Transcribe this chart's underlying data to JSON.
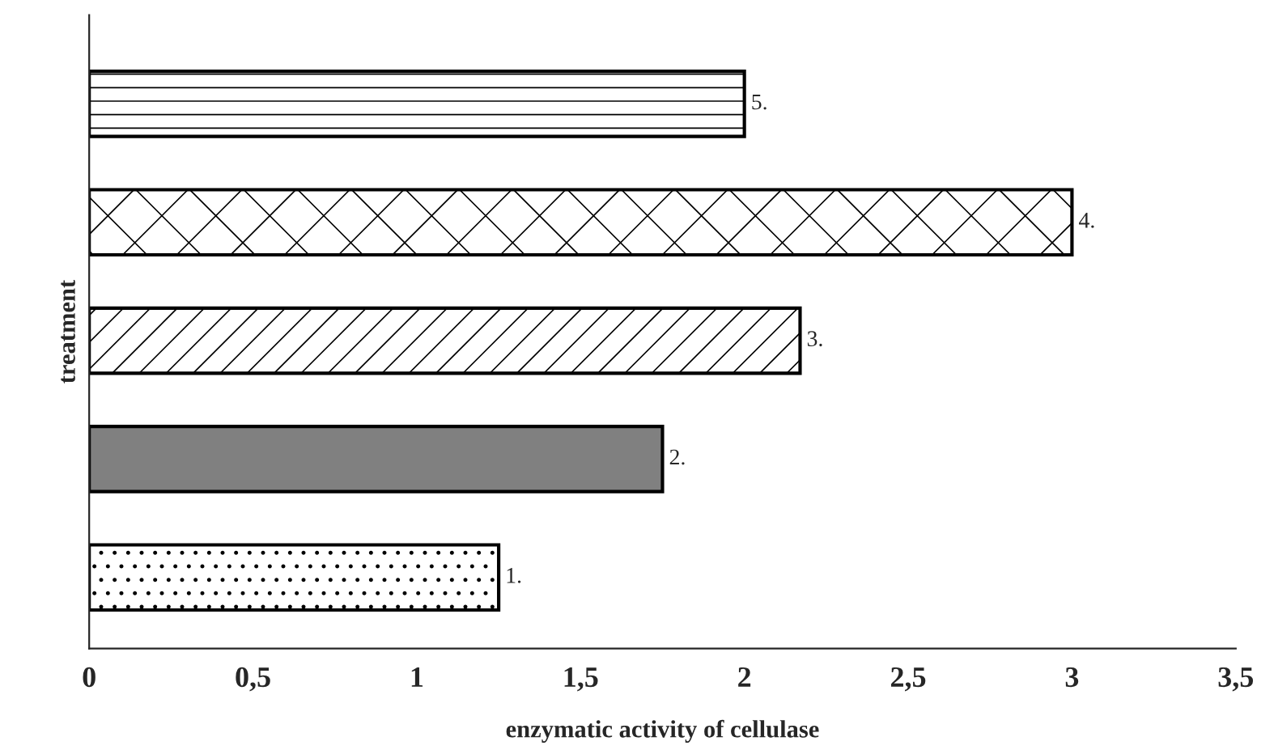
{
  "chart_data": {
    "type": "bar",
    "orientation": "horizontal",
    "xlabel": "enzymatic activity of cellulase",
    "ylabel": "treatment",
    "categories": [
      "5.",
      "4.",
      "3.",
      "2.",
      "1."
    ],
    "values": [
      2.0,
      3.0,
      2.17,
      1.75,
      1.25
    ],
    "colors": [
      "#000000",
      "#000000",
      "#000000",
      "#808080",
      "#000000"
    ],
    "xlim": [
      0,
      3.5
    ],
    "xticks": [
      0,
      {
        "value": 0.5,
        "label": "0,5"
      },
      1,
      {
        "value": 1.5,
        "label": "1,5"
      },
      2,
      {
        "value": 2.5,
        "label": "2,5"
      },
      3,
      {
        "value": 3.5,
        "label": "3,5"
      }
    ],
    "grid": false,
    "legend": false
  }
}
